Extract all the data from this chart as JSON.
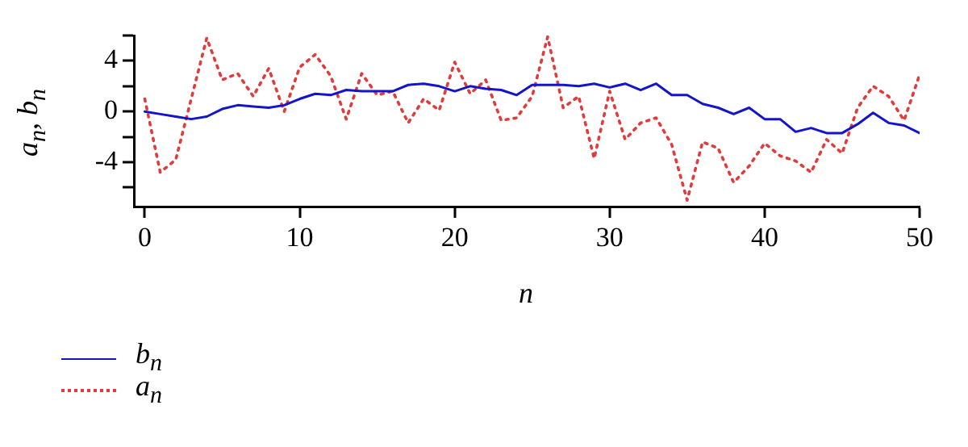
{
  "chart_data": {
    "type": "line",
    "xlabel": "n",
    "ylabel": "a$_{n}$, b$_{n}$",
    "x": [
      0,
      1,
      2,
      3,
      4,
      5,
      6,
      7,
      8,
      9,
      10,
      11,
      12,
      13,
      14,
      15,
      16,
      17,
      18,
      19,
      20,
      21,
      22,
      23,
      24,
      25,
      26,
      27,
      28,
      29,
      30,
      31,
      32,
      33,
      34,
      35,
      36,
      37,
      38,
      39,
      40,
      41,
      42,
      43,
      44,
      45,
      46,
      47,
      48,
      49,
      50
    ],
    "series": [
      {
        "name": "b$_{n}$",
        "color": "#1414cc",
        "line_style": "solid",
        "values": [
          0,
          -0.2,
          -0.4,
          -0.6,
          -0.4,
          0.2,
          0.5,
          0.4,
          0.3,
          0.5,
          1.0,
          1.4,
          1.3,
          1.7,
          1.6,
          1.6,
          1.6,
          2.1,
          2.2,
          2.0,
          1.6,
          2.0,
          1.8,
          1.7,
          1.3,
          2.1,
          2.1,
          2.1,
          2.0,
          2.2,
          1.9,
          2.2,
          1.7,
          2.2,
          1.3,
          1.3,
          0.6,
          0.3,
          -0.2,
          0.3,
          -0.6,
          -0.6,
          -1.6,
          -1.3,
          -1.7,
          -1.7,
          -1.0,
          -0.1,
          -0.9,
          -1.1,
          -1.7
        ]
      },
      {
        "name": "a$_{n}$",
        "color": "#e03c3c",
        "line_style": "dotted",
        "values": [
          1.0,
          -4.8,
          -3.8,
          1.0,
          5.8,
          2.5,
          3.0,
          1.2,
          3.4,
          0,
          3.5,
          4.5,
          2.8,
          -0.6,
          3.0,
          1.3,
          1.6,
          -0.9,
          1.0,
          0.1,
          3.9,
          1.4,
          2.5,
          -0.7,
          -0.5,
          1.2,
          5.9,
          0.3,
          1.2,
          -3.7,
          1.6,
          -2.2,
          -0.9,
          -0.5,
          -2.6,
          -7.0,
          -2.4,
          -2.9,
          -5.6,
          -4.3,
          -2.5,
          -3.5,
          -3.9,
          -4.8,
          -2.2,
          -3.3,
          0.3,
          2.0,
          1.2,
          -0.7,
          2.9
        ]
      }
    ],
    "xlim": [
      -0.7,
      50
    ],
    "xticks": [
      0,
      10,
      20,
      30,
      40,
      50
    ],
    "ylim": [
      -7.5,
      6
    ],
    "yticks": [
      {
        "value": -6,
        "label": null
      },
      -4,
      {
        "value": -2,
        "label": null
      },
      0,
      {
        "value": 2,
        "label": null
      },
      4,
      {
        "value": 6,
        "label": null
      }
    ],
    "grid": false,
    "legend": "bottom left",
    "marker": "none"
  }
}
